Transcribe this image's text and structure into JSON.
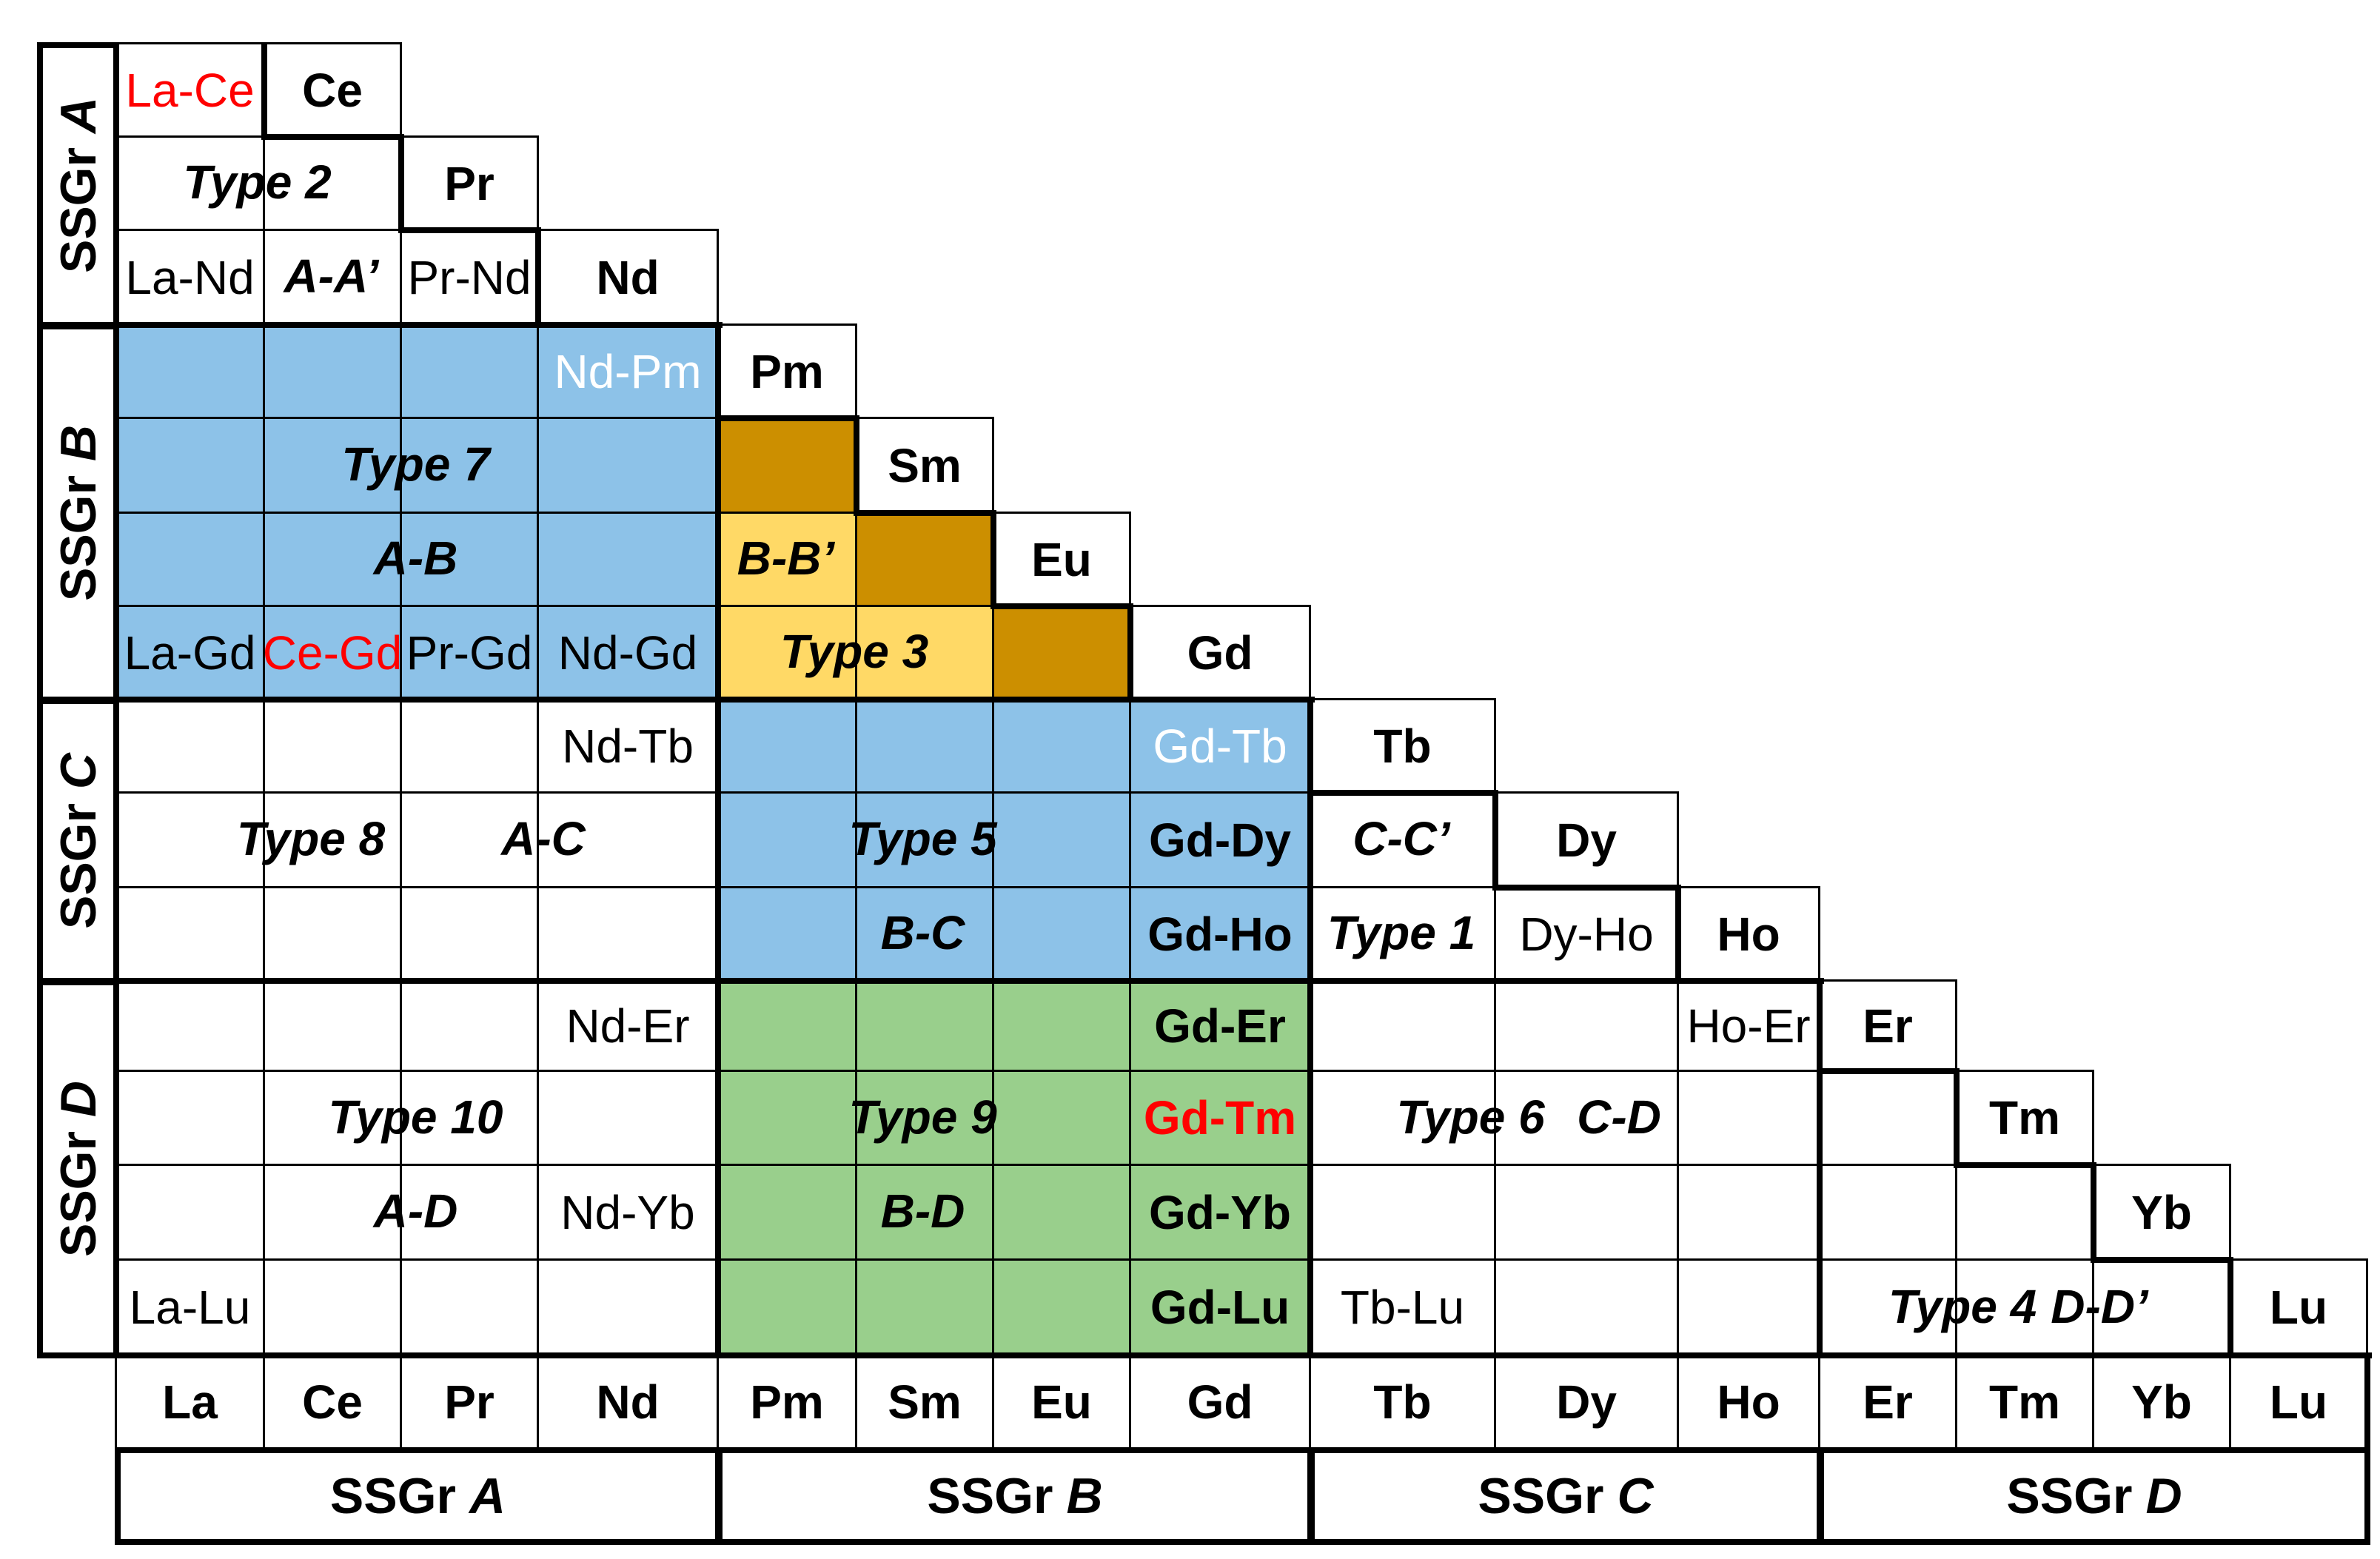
{
  "colors": {
    "light_blue": "#8dc2e8",
    "dark_blue": "#0b6db0",
    "dark_gold": "#cc8f00",
    "light_yellow": "#ffd966",
    "green": "#99cf8c",
    "red_text": "#ff0000"
  },
  "elements": [
    "La",
    "Ce",
    "Pr",
    "Nd",
    "Pm",
    "Sm",
    "Eu",
    "Gd",
    "Tb",
    "Dy",
    "Ho",
    "Er",
    "Tm",
    "Yb",
    "Lu"
  ],
  "subgroups": {
    "prefix": "SSGr",
    "groups": [
      "A",
      "B",
      "C",
      "D"
    ]
  },
  "pairs": {
    "la_ce": "La-Ce",
    "la_nd": "La-Nd",
    "pr_nd": "Pr-Nd",
    "nd_pm": "Nd-Pm",
    "la_gd": "La-Gd",
    "ce_gd": "Ce-Gd",
    "pr_gd": "Pr-Gd",
    "nd_gd": "Nd-Gd",
    "nd_tb": "Nd-Tb",
    "gd_tb": "Gd-Tb",
    "gd_dy": "Gd-Dy",
    "gd_ho": "Gd-Ho",
    "dy_ho": "Dy-Ho",
    "nd_er": "Nd-Er",
    "ho_er": "Ho-Er",
    "gd_er": "Gd-Er",
    "gd_tm": "Gd-Tm",
    "nd_yb": "Nd-Yb",
    "gd_yb": "Gd-Yb",
    "la_lu": "La-Lu",
    "gd_lu": "Gd-Lu",
    "tb_lu": "Tb-Lu"
  },
  "type_labels": {
    "type1": "Type 1",
    "type2": "Type 2",
    "type3": "Type 3",
    "type4": "Type 4",
    "type5": "Type 5",
    "type6": "Type 6",
    "type7": "Type 7",
    "type8": "Type 8",
    "type9": "Type 9",
    "type10": "Type 10"
  },
  "class_labels": {
    "a_a_prime": "A-A’",
    "a_b": "A-B",
    "b_b_prime": "B-B’",
    "c_c_prime": "C-C’",
    "a_c": "A-C",
    "b_c": "B-C",
    "c_d": "C-D",
    "a_d": "A-D",
    "b_d": "B-D",
    "d_d_prime": "D-D’"
  }
}
